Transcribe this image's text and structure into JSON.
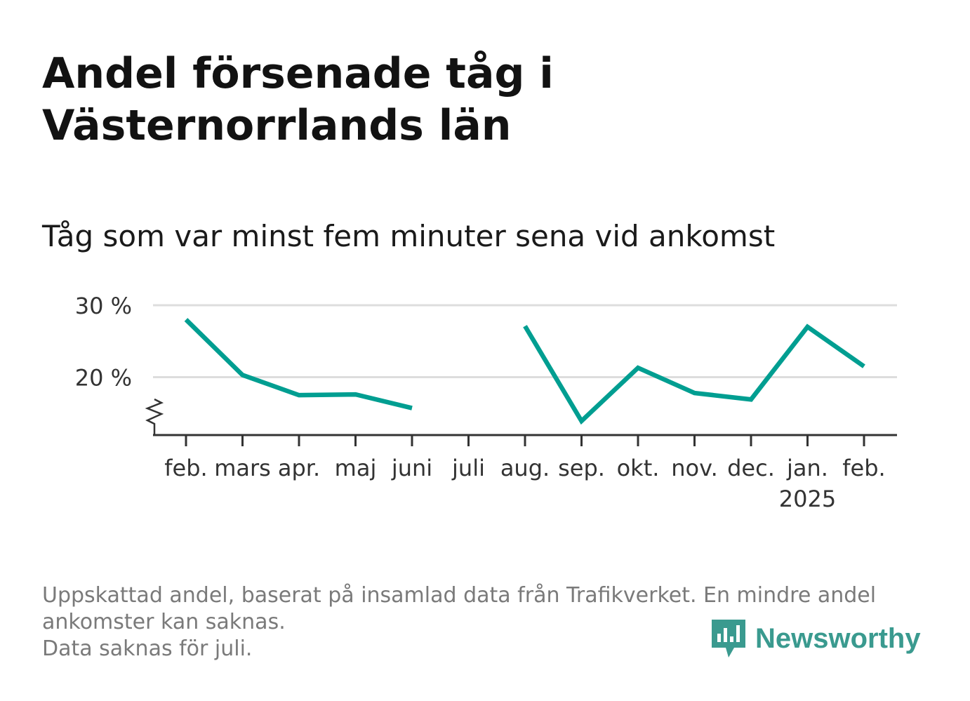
{
  "title": "Andel försenade tåg i Västernorrlands län",
  "subtitle": "Tåg som var minst fem minuter sena vid ankomst",
  "footnote": {
    "line1": "Uppskattad andel, baserat på insamlad data från Trafikverket. En mindre andel",
    "line2": "ankomster kan saknas.",
    "line3": "Data saknas för juli."
  },
  "logo": {
    "text": "Newsworthy",
    "icon": "newsworthy-logo-icon",
    "color": "#3a9a8f"
  },
  "chart_data": {
    "type": "line",
    "title": "Andel försenade tåg i Västernorrlands län",
    "subtitle": "Tåg som var minst fem minuter sena vid ankomst",
    "categories": [
      "feb.",
      "mars",
      "apr.",
      "maj",
      "juni",
      "juli",
      "aug.",
      "sep.",
      "okt.",
      "nov.",
      "dec.",
      "jan.",
      "feb."
    ],
    "year_labels": [
      "",
      "",
      "",
      "",
      "",
      "",
      "",
      "",
      "",
      "",
      "",
      "2025",
      ""
    ],
    "series": [
      {
        "values": [
          28.0,
          20.3,
          17.5,
          17.6,
          15.7,
          null,
          27.1,
          13.9,
          21.3,
          17.8,
          16.9,
          27.0,
          21.5
        ],
        "color": "#009e91"
      }
    ],
    "y_ticks": [
      20,
      30
    ],
    "y_tick_labels": [
      "20 %",
      "30 %"
    ],
    "ylim": [
      12,
      30
    ],
    "axis_break": true,
    "grid": true,
    "legend": "none"
  }
}
